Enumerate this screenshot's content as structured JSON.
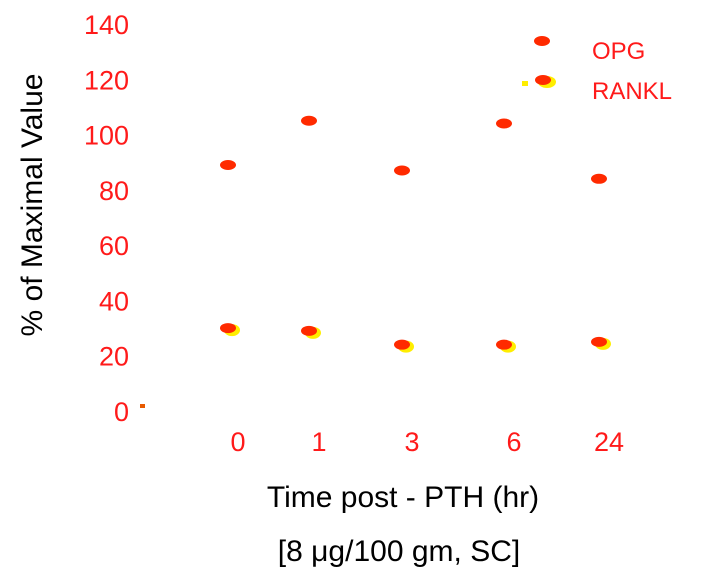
{
  "chart_data": {
    "type": "scatter",
    "ylabel": "% of Maximal Value",
    "xlabel": "Time post - PTH (hr)",
    "xlabel2": "[8 μg/100 gm, SC]",
    "categories": [
      "0",
      "1",
      "3",
      "6",
      "24"
    ],
    "ylim": [
      0,
      140
    ],
    "yticks": [
      "0",
      "20",
      "40",
      "60",
      "80",
      "100",
      "120",
      "140"
    ],
    "grid": false,
    "legend_position": "top-right",
    "series": [
      {
        "name": "OPG",
        "color": "#ff2a00",
        "values": [
          89,
          105,
          87,
          104,
          84
        ]
      },
      {
        "name": "RANKL",
        "color": "#ff2a00",
        "edge_color": "#ffee00",
        "values": [
          30,
          29,
          24,
          24,
          25
        ]
      }
    ],
    "colors": {
      "tick_text": "#ff1a1a",
      "title_text": "#000000",
      "marker": "#ff2a00",
      "halo": "#ffee00"
    }
  }
}
